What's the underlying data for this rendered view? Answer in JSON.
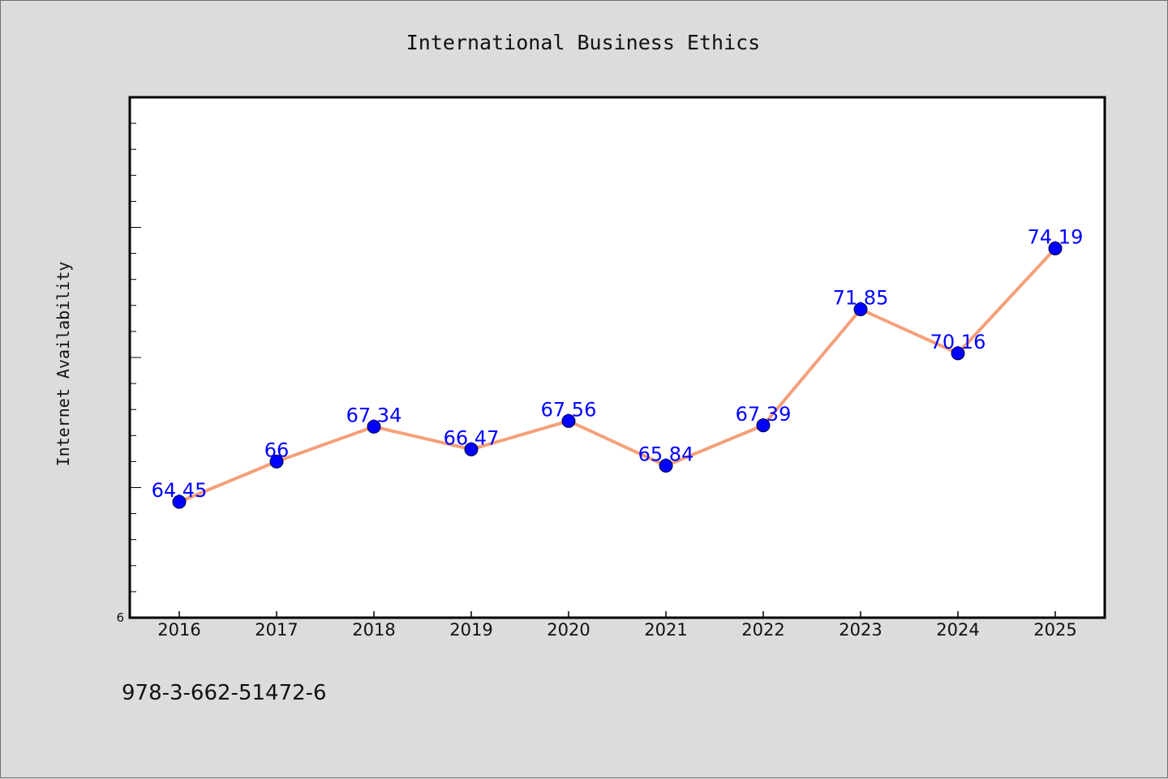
{
  "colors": {
    "background": "#dcdcdc",
    "plot_background": "#ffffff",
    "line": "#f4a07a",
    "marker": "#0000ff",
    "data_label": "#0000ff",
    "axis": "#000000"
  },
  "chart_data": {
    "type": "line",
    "title": "International Business Ethics",
    "xlabel": "",
    "ylabel": "Internet Availability",
    "categories": [
      "2016",
      "2017",
      "2018",
      "2019",
      "2020",
      "2021",
      "2022",
      "2023",
      "2024",
      "2025"
    ],
    "series": [
      {
        "values": [
          64.45,
          66,
          67.34,
          66.47,
          67.56,
          65.84,
          67.39,
          71.85,
          70.16,
          74.19
        ],
        "labels": [
          "64.45",
          "66",
          "67.34",
          "66.47",
          "67.56",
          "65.84",
          "67.39",
          "71.85",
          "70.16",
          "74.19"
        ]
      }
    ],
    "ylim": [
      60,
      80
    ],
    "y_min_label": "6",
    "grid": false,
    "legend": "none"
  },
  "footer": {
    "isbn": "978-3-662-51472-6"
  }
}
